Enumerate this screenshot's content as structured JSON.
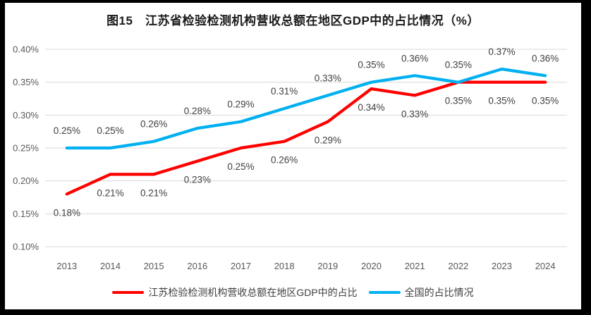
{
  "title": "图15　江苏省检验检测机构营收总额在地区GDP中的占比情况（%）",
  "colors": {
    "jiangsu_line": "#FF0000",
    "national_line": "#00B0F0",
    "gridline": "#D9D9D9",
    "axis_text": "#595959",
    "data_label_text": "#3f3f3f",
    "frame_border": "#000000",
    "chart_background": "#ffffff"
  },
  "chart_data": {
    "type": "line",
    "categories": [
      "2013",
      "2014",
      "2015",
      "2016",
      "2017",
      "2018",
      "2019",
      "2020",
      "2021",
      "2022",
      "2023",
      "2024"
    ],
    "series": [
      {
        "name": "江苏检验检测机构营收总额在地区GDP中的占比",
        "color": "#FF0000",
        "values": [
          0.18,
          0.21,
          0.21,
          0.23,
          0.25,
          0.26,
          0.29,
          0.34,
          0.33,
          0.35,
          0.35,
          0.35
        ],
        "labels": [
          "0.18%",
          "0.21%",
          "0.21%",
          "0.23%",
          "0.25%",
          "0.26%",
          "0.29%",
          "0.34%",
          "0.33%",
          "0.35%",
          "0.35%",
          "0.35%"
        ],
        "label_position": "below"
      },
      {
        "name": "全国的占比情况",
        "color": "#00B0F0",
        "values": [
          0.25,
          0.25,
          0.26,
          0.28,
          0.29,
          0.31,
          0.33,
          0.35,
          0.36,
          0.35,
          0.37,
          0.36
        ],
        "labels": [
          "0.25%",
          "0.25%",
          "0.26%",
          "0.28%",
          "0.29%",
          "0.31%",
          "0.33%",
          "0.35%",
          "0.36%",
          "0.35%",
          "0.37%",
          "0.36%"
        ],
        "label_position": "above"
      }
    ],
    "ylim": [
      0.1,
      0.4
    ],
    "yticks": [
      "0.40%",
      "0.35%",
      "0.30%",
      "0.25%",
      "0.20%",
      "0.15%",
      "0.10%"
    ],
    "xlabel": "",
    "ylabel": "",
    "grid": "horizontal",
    "legend_position": "bottom"
  }
}
